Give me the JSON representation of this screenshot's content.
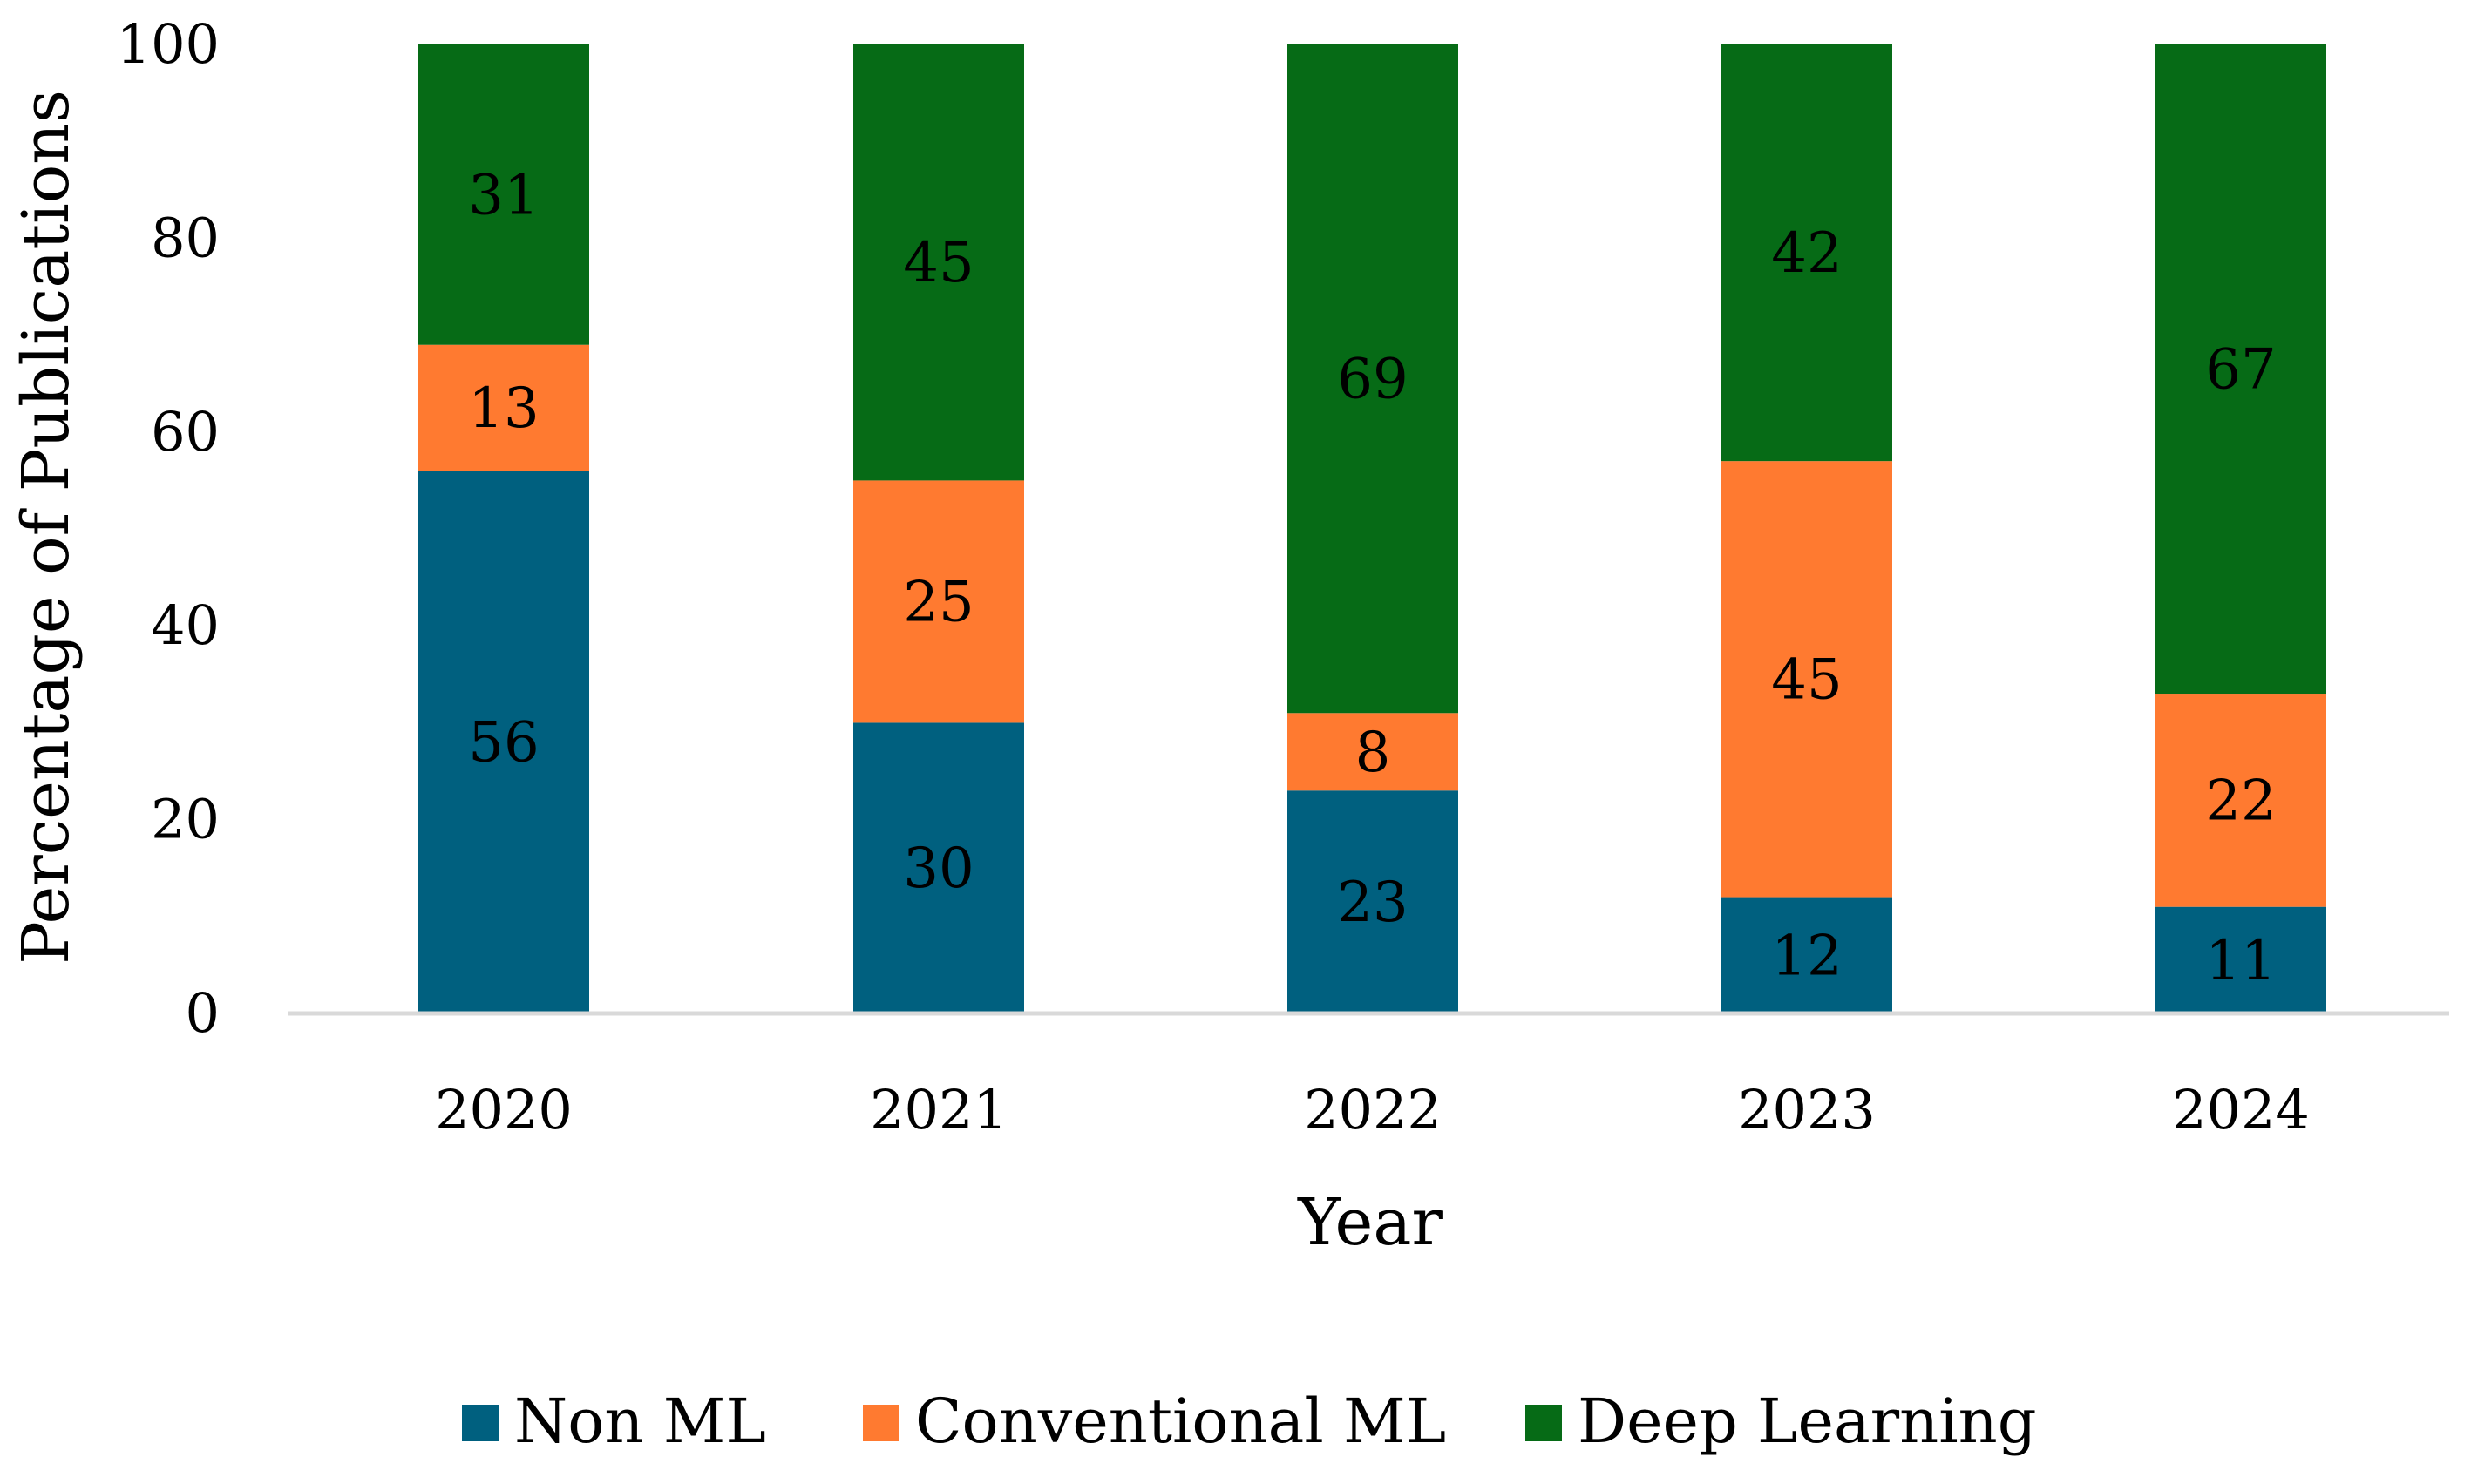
{
  "chart_data": {
    "type": "bar",
    "stacked": true,
    "title": "",
    "xlabel": "Year",
    "ylabel": "Percentage of Publications",
    "ylim": [
      0,
      100
    ],
    "yticks": [
      0,
      20,
      40,
      60,
      80,
      100
    ],
    "grid": false,
    "legend_position": "bottom",
    "categories": [
      "2020",
      "2021",
      "2022",
      "2023",
      "2024"
    ],
    "series": [
      {
        "name": "Non ML",
        "color": "#00607f",
        "values": [
          56,
          30,
          23,
          12,
          11
        ]
      },
      {
        "name": "Conventional ML",
        "color": "#ff7a30",
        "values": [
          13,
          25,
          8,
          45,
          22
        ]
      },
      {
        "name": "Deep Learning",
        "color": "#066b16",
        "values": [
          31,
          45,
          69,
          42,
          67
        ]
      }
    ]
  }
}
